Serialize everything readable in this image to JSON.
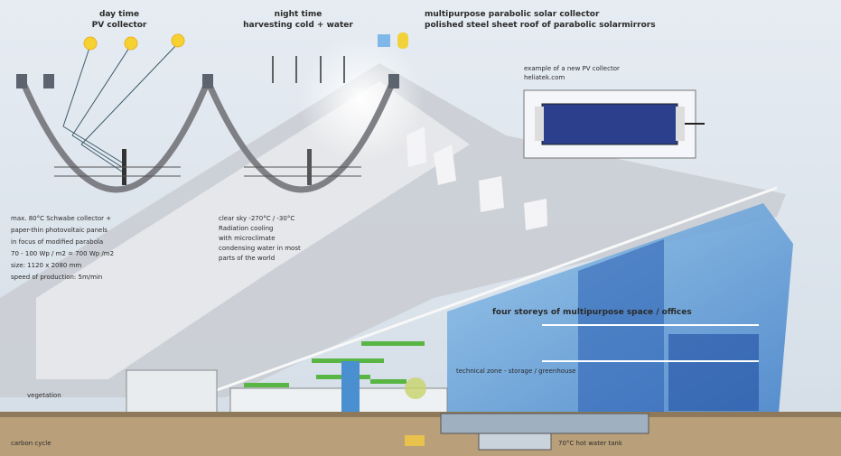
{
  "day": {
    "title": "day time",
    "subtitle": "PV collector"
  },
  "night": {
    "title": "night time",
    "subtitle": "harvesting cold + water"
  },
  "collector": {
    "title": "multipurpose parabolic solar collector",
    "subtitle": "polished steel sheet roof of parabolic solarmirrors"
  },
  "pv_example": {
    "title": "example of a new PV collector",
    "subtitle": "heliatek.com"
  },
  "left_block": [
    "max. 80°C Schwabe collector +",
    "paper-thin photovoltaic panels",
    "in focus of modified parabola",
    "70 - 100 Wp / m2 = 700 Wp /m2",
    "size: 1120 x 2080 mm",
    "speed of production: 5m/min"
  ],
  "mid_block": [
    "clear sky -270°C / -30°C",
    "Radiation cooling",
    "with microclimate",
    "condensing water in most",
    "parts of the world"
  ],
  "offices": "four storeys of multipurpose space / offices",
  "technical": "technical zone - storage / greenhouse",
  "vegetation": "vegetation",
  "carbon": "carbon cycle",
  "tank": "70°C hot water tank"
}
